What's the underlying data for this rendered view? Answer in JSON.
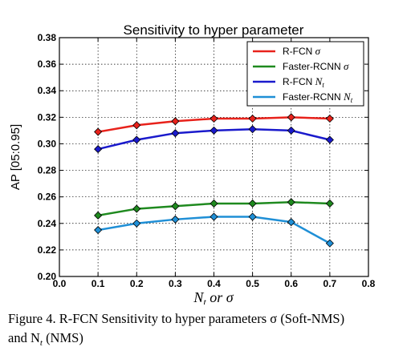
{
  "chart_data": {
    "type": "line",
    "title": "Sensitivity to hyper parameter",
    "xlabel": "Nt or σ",
    "xlabel_main": "N",
    "xlabel_sub": "t",
    "xlabel_rest": " or σ",
    "ylabel": "AP [05:0.95]",
    "xlim": [
      0.0,
      0.8
    ],
    "ylim": [
      0.2,
      0.38
    ],
    "xticks": [
      "0.0",
      "0.1",
      "0.2",
      "0.3",
      "0.4",
      "0.5",
      "0.6",
      "0.7",
      "0.8"
    ],
    "yticks": [
      "0.20",
      "0.22",
      "0.24",
      "0.26",
      "0.28",
      "0.30",
      "0.32",
      "0.34",
      "0.36",
      "0.38"
    ],
    "grid": true,
    "legend_position": "top-right",
    "x": [
      0.1,
      0.2,
      0.3,
      0.4,
      0.5,
      0.6,
      0.7
    ],
    "series": [
      {
        "name": "R-FCN σ",
        "name_main": "R-FCN ",
        "name_sym": "σ",
        "name_sub": "",
        "color": "#e8221b",
        "values": [
          0.309,
          0.314,
          0.317,
          0.319,
          0.319,
          0.32,
          0.319
        ]
      },
      {
        "name": "Faster-RCNN σ",
        "name_main": "Faster-RCNN ",
        "name_sym": "σ",
        "name_sub": "",
        "color": "#1f8a1f",
        "values": [
          0.246,
          0.251,
          0.253,
          0.255,
          0.255,
          0.256,
          0.255
        ]
      },
      {
        "name": "R-FCN Nt",
        "name_main": "R-FCN ",
        "name_sym": "N",
        "name_sub": "t",
        "color": "#1a1acc",
        "values": [
          0.296,
          0.303,
          0.308,
          0.31,
          0.311,
          0.31,
          0.303
        ]
      },
      {
        "name": "Faster-RCNN Nt",
        "name_main": "Faster-RCNN ",
        "name_sym": "N",
        "name_sub": "t",
        "color": "#1f8fd6",
        "values": [
          0.235,
          0.24,
          0.243,
          0.245,
          0.245,
          0.241,
          0.225
        ]
      }
    ]
  },
  "caption": {
    "line1": "Figure 4. R-FCN Sensitivity to hyper parameters σ (Soft-NMS)",
    "line2_main": "and N",
    "line2_sub": "t",
    "line2_rest": " (NMS)"
  }
}
